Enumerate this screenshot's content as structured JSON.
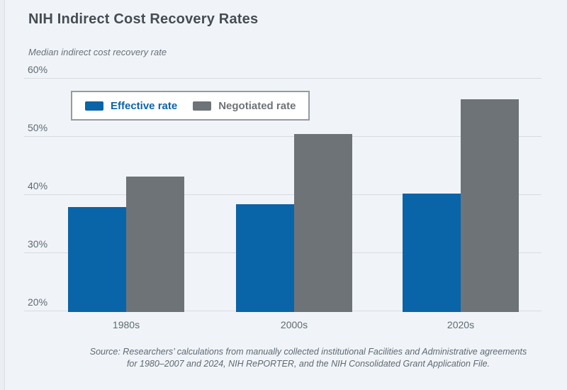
{
  "page": {
    "title": "NIH Indirect Cost Recovery Rates",
    "y_axis_title": "Median indirect cost recovery rate",
    "source_line1": "Source: Researchers’ calculations from manually collected institutional Facilities and Administrative agreements",
    "source_line2": "for 1980–2007 and 2024, NIH RePORTER, and the NIH Consolidated Grant Application File."
  },
  "legend": {
    "items": [
      {
        "label": "Effective rate",
        "color": "#0a64a8"
      },
      {
        "label": "Negotiated rate",
        "color": "#6e7378"
      }
    ]
  },
  "chart_data": {
    "type": "bar",
    "title": "NIH Indirect Cost Recovery Rates",
    "ylabel": "Median indirect cost recovery rate",
    "categories": [
      "1980s",
      "2000s",
      "2020s"
    ],
    "series": [
      {
        "name": "Effective rate",
        "color": "#0a64a8",
        "values": [
          37.8,
          38.3,
          40.1
        ]
      },
      {
        "name": "Negotiated rate",
        "color": "#6e7378",
        "values": [
          43.0,
          50.4,
          56.3
        ]
      }
    ],
    "ylim": [
      20,
      60
    ],
    "yticks": [
      20,
      30,
      40,
      50,
      60
    ],
    "ytick_suffix": "%",
    "grid": true,
    "legend_position": "top-left",
    "background_color": "#f0f4f8",
    "gridline_color": "#d8dce0"
  }
}
